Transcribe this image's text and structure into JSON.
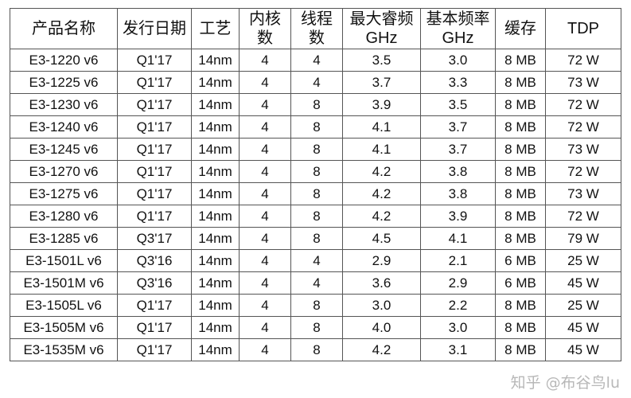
{
  "headers": [
    "产品名称",
    "发行日期",
    "工艺",
    "内核\n数",
    "线程\n数",
    "最大睿频\nGHz",
    "基本频率\nGHz",
    "缓存",
    "TDP"
  ],
  "rows": [
    [
      "E3-1220 v6",
      "Q1'17",
      "14nm",
      "4",
      "4",
      "3.5",
      "3.0",
      "8 MB",
      "72 W"
    ],
    [
      "E3-1225 v6",
      "Q1'17",
      "14nm",
      "4",
      "4",
      "3.7",
      "3.3",
      "8 MB",
      "73 W"
    ],
    [
      "E3-1230 v6",
      "Q1'17",
      "14nm",
      "4",
      "8",
      "3.9",
      "3.5",
      "8 MB",
      "72 W"
    ],
    [
      "E3-1240 v6",
      "Q1'17",
      "14nm",
      "4",
      "8",
      "4.1",
      "3.7",
      "8 MB",
      "72 W"
    ],
    [
      "E3-1245 v6",
      "Q1'17",
      "14nm",
      "4",
      "8",
      "4.1",
      "3.7",
      "8 MB",
      "73 W"
    ],
    [
      "E3-1270 v6",
      "Q1'17",
      "14nm",
      "4",
      "8",
      "4.2",
      "3.8",
      "8 MB",
      "72 W"
    ],
    [
      "E3-1275 v6",
      "Q1'17",
      "14nm",
      "4",
      "8",
      "4.2",
      "3.8",
      "8 MB",
      "73 W"
    ],
    [
      "E3-1280 v6",
      "Q1'17",
      "14nm",
      "4",
      "8",
      "4.2",
      "3.9",
      "8 MB",
      "72 W"
    ],
    [
      "E3-1285 v6",
      "Q3'17",
      "14nm",
      "4",
      "8",
      "4.5",
      "4.1",
      "8 MB",
      "79 W"
    ],
    [
      "E3-1501L v6",
      "Q3'16",
      "14nm",
      "4",
      "4",
      "2.9",
      "2.1",
      "6 MB",
      "25 W"
    ],
    [
      "E3-1501M v6",
      "Q3'16",
      "14nm",
      "4",
      "4",
      "3.6",
      "2.9",
      "6 MB",
      "45 W"
    ],
    [
      "E3-1505L v6",
      "Q1'17",
      "14nm",
      "4",
      "8",
      "3.0",
      "2.2",
      "8 MB",
      "25 W"
    ],
    [
      "E3-1505M v6",
      "Q1'17",
      "14nm",
      "4",
      "8",
      "4.0",
      "3.0",
      "8 MB",
      "45 W"
    ],
    [
      "E3-1535M v6",
      "Q1'17",
      "14nm",
      "4",
      "8",
      "4.2",
      "3.1",
      "8 MB",
      "45 W"
    ]
  ],
  "watermark": "知乎 @布谷鸟lu"
}
